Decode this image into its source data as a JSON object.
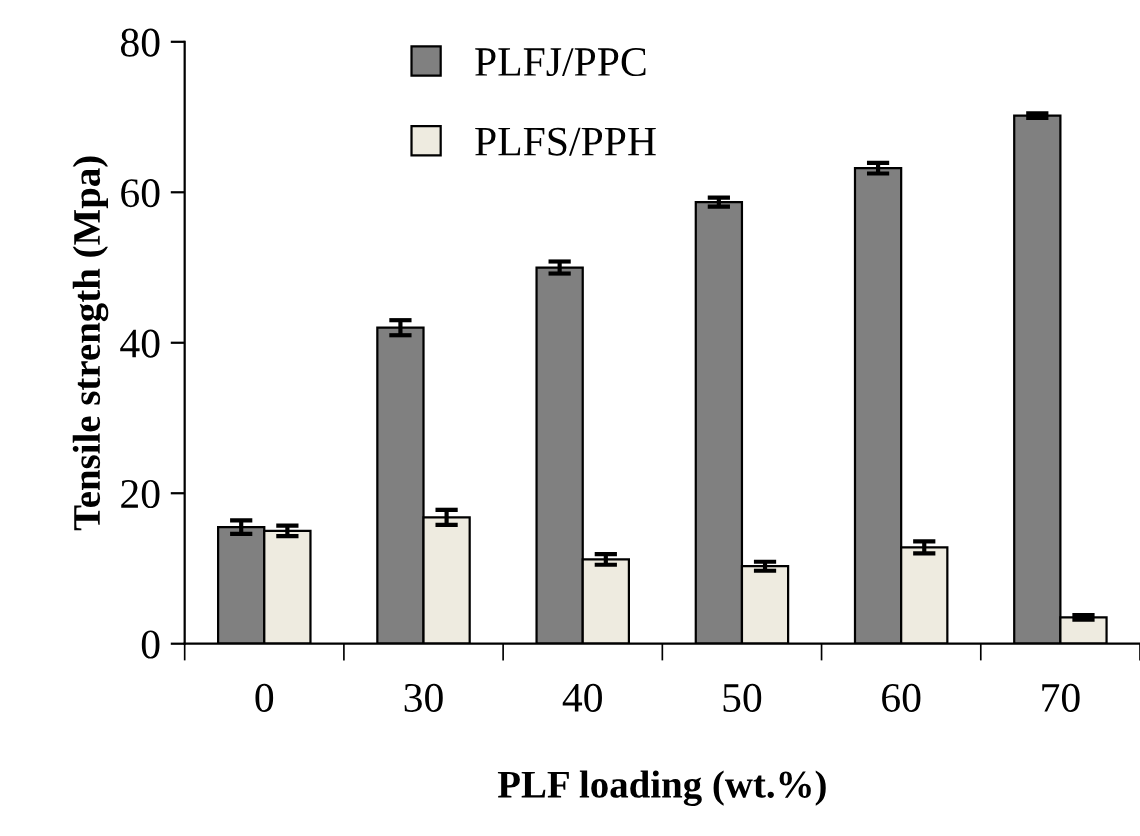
{
  "chart_data": {
    "type": "bar",
    "xlabel": "PLF loading (wt.%)",
    "ylabel": "Tensile strength (Mpa)",
    "categories": [
      "0",
      "30",
      "40",
      "50",
      "60",
      "70"
    ],
    "series": [
      {
        "name": "PLFJ/PPC",
        "color": "#808080",
        "values": [
          15.5,
          42,
          50,
          58.7,
          63.2,
          70.2
        ],
        "errors": [
          0.9,
          1,
          0.8,
          0.6,
          0.7,
          0.3
        ]
      },
      {
        "name": "PLFS/PPH",
        "color": "#eeebe0",
        "values": [
          15,
          16.8,
          11.2,
          10.3,
          12.8,
          3.5
        ],
        "errors": [
          0.7,
          1,
          0.7,
          0.6,
          0.8,
          0.3
        ]
      }
    ],
    "ylim": [
      0,
      80
    ],
    "yticks": [
      0,
      20,
      40,
      60,
      80
    ],
    "grid": false,
    "legend": "top left"
  }
}
